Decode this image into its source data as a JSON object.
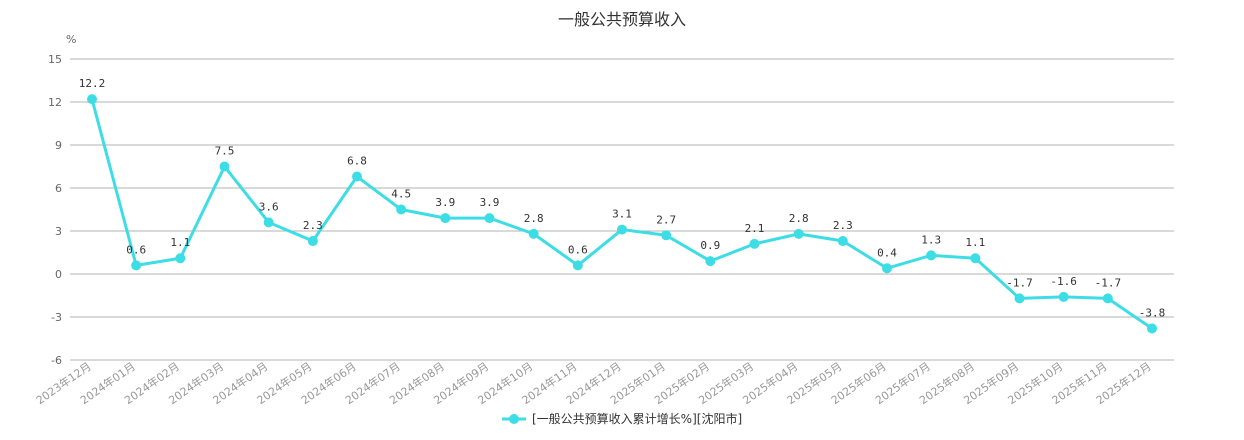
{
  "chart_data": {
    "type": "line",
    "title": "一般公共预算收入",
    "ylabel": "%",
    "ylim": [
      -6,
      15
    ],
    "yticks": [
      15,
      12,
      9,
      6,
      3,
      0,
      -3,
      -6
    ],
    "grid": true,
    "legend_position": "bottom",
    "categories": [
      "2023年12月",
      "2024年01月",
      "2024年02月",
      "2024年03月",
      "2024年04月",
      "2024年05月",
      "2024年06月",
      "2024年07月",
      "2024年08月",
      "2024年09月",
      "2024年10月",
      "2024年11月",
      "2024年12月",
      "2025年01月",
      "2025年02月",
      "2025年03月",
      "2025年04月",
      "2025年05月",
      "2025年06月",
      "2025年07月",
      "2025年08月",
      "2025年09月",
      "2025年10月",
      "2025年11月",
      "2025年12月"
    ],
    "series": [
      {
        "name": "[一般公共预算收入累计增长%][沈阳市]",
        "color": "#3ddde5",
        "values": [
          12.2,
          0.6,
          1.1,
          7.5,
          3.6,
          2.3,
          6.8,
          4.5,
          3.9,
          3.9,
          2.8,
          0.6,
          3.1,
          2.7,
          0.9,
          2.1,
          2.8,
          2.3,
          0.4,
          1.3,
          1.1,
          -1.7,
          -1.6,
          -1.7,
          -3.8
        ]
      }
    ]
  }
}
